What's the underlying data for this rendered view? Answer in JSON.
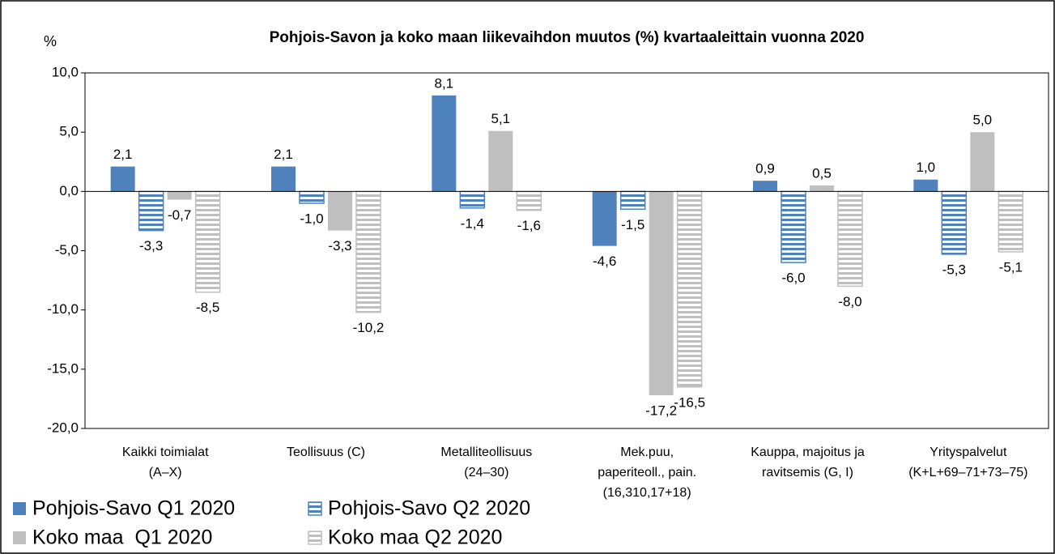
{
  "chart_data": {
    "type": "bar",
    "title": "Pohjois-Savon ja koko maan liikevaihdon muutos (%) kvartaaleittain vuonna 2020",
    "ylabel": "%",
    "categories": [
      [
        "Kaikki toimialat",
        "(A–X)"
      ],
      [
        "Teollisuus (C)"
      ],
      [
        "Metalliteollisuus",
        "(24–30)"
      ],
      [
        "Mek.puu,",
        "paperiteoll., pain.",
        "(16,310,17+18)"
      ],
      [
        "Kauppa, majoitus ja",
        "ravitsemis (G, I)"
      ],
      [
        "Yrityspalvelut",
        "(K+L+69–71+73–75)"
      ]
    ],
    "series": [
      {
        "name": "Pohjois-Savo Q1 2020",
        "color": "#4f81bd",
        "hatch": false,
        "values": [
          2.1,
          2.1,
          8.1,
          -4.6,
          0.9,
          1.0
        ],
        "value_labels": [
          "2,1",
          "2,1",
          "8,1",
          "-4,6",
          "0,9",
          "1,0"
        ]
      },
      {
        "name": "Pohjois-Savo Q2 2020",
        "color": "#4f81bd",
        "hatch": true,
        "values": [
          -3.3,
          -1.0,
          -1.4,
          -1.5,
          -6.0,
          -5.3
        ],
        "value_labels": [
          "-3,3",
          "-1,0",
          "-1,4",
          "-1,5",
          "-6,0",
          "-5,3"
        ]
      },
      {
        "name": "Koko maa  Q1 2020",
        "color": "#bfbfbf",
        "hatch": false,
        "values": [
          -0.7,
          -3.3,
          5.1,
          -17.2,
          0.5,
          5.0
        ],
        "value_labels": [
          "-0,7",
          "-3,3",
          "5,1",
          "-17,2",
          "0,5",
          "5,0"
        ]
      },
      {
        "name": "Koko maa Q2 2020",
        "color": "#bfbfbf",
        "hatch": true,
        "values": [
          -8.5,
          -10.2,
          -1.6,
          -16.5,
          -8.0,
          -5.1
        ],
        "value_labels": [
          "-8,5",
          "-10,2",
          "-1,6",
          "-16,5",
          "-8,0",
          "-5,1"
        ]
      }
    ],
    "ylim": [
      -20,
      10
    ],
    "yticks": [
      {
        "value": -20,
        "label": "-20,0"
      },
      {
        "value": -15,
        "label": "-15,0"
      },
      {
        "value": -10,
        "label": "-10,0"
      },
      {
        "value": -5,
        "label": "-5,0"
      },
      {
        "value": 0,
        "label": "0,0"
      },
      {
        "value": 5,
        "label": "5,0"
      },
      {
        "value": 10,
        "label": "10,0"
      }
    ],
    "grid": false,
    "legend": "bottom-left"
  }
}
